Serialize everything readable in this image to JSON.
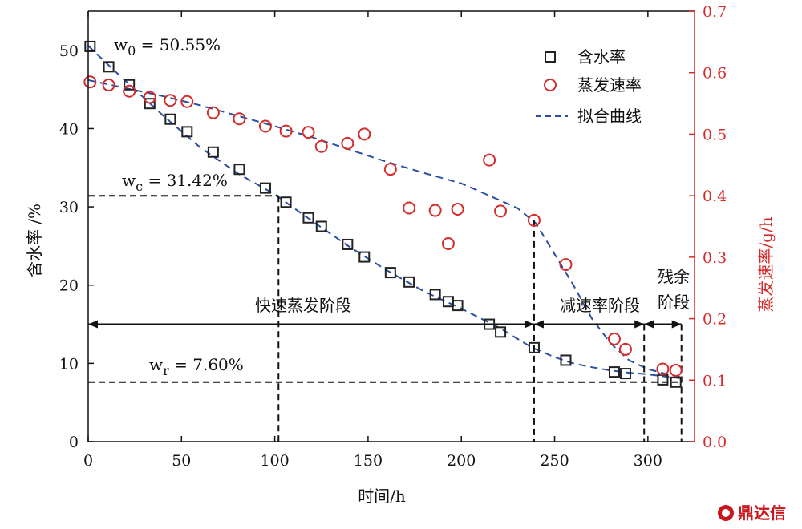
{
  "chart_data": {
    "type": "scatter",
    "xlabel": "时间/h",
    "ylabel_left": "含水率 /%",
    "ylabel_right": "蒸发速率/g/h",
    "xlim": [
      0,
      325
    ],
    "ylim_left": [
      0,
      55
    ],
    "ylim_right": [
      0,
      0.7
    ],
    "xticks": [
      0,
      50,
      100,
      150,
      200,
      250,
      300
    ],
    "yticks_left": [
      0,
      10,
      20,
      30,
      40,
      50
    ],
    "yticks_right": [
      "0.0",
      "0.1",
      "0.2",
      "0.3",
      "0.4",
      "0.5",
      "0.6",
      "0.7"
    ],
    "legend": {
      "position": "top-right",
      "items": [
        "含水率",
        "蒸发速率",
        "拟合曲线"
      ]
    },
    "series": [
      {
        "name": "含水率",
        "axis": "left",
        "marker": "square",
        "color": "#222222",
        "x": [
          1,
          11,
          22,
          33,
          44,
          53,
          67,
          81,
          95,
          106,
          118,
          125,
          139,
          148,
          162,
          172,
          186,
          193,
          198,
          215,
          221,
          239,
          256,
          282,
          288,
          308,
          315
        ],
        "y": [
          50.5,
          47.9,
          45.6,
          43.2,
          41.2,
          39.6,
          37.0,
          34.8,
          32.4,
          30.6,
          28.6,
          27.5,
          25.2,
          23.6,
          21.6,
          20.4,
          18.8,
          17.9,
          17.4,
          15.0,
          14.0,
          12.0,
          10.4,
          8.9,
          8.7,
          7.9,
          7.6
        ]
      },
      {
        "name": "蒸发速率",
        "axis": "right",
        "marker": "circle",
        "color": "#d62b2b",
        "x": [
          1,
          11,
          22,
          33,
          44,
          53,
          67,
          81,
          95,
          106,
          118,
          125,
          139,
          148,
          162,
          172,
          186,
          193,
          198,
          215,
          221,
          239,
          256,
          282,
          288,
          308,
          315
        ],
        "y": [
          0.585,
          0.58,
          0.57,
          0.56,
          0.555,
          0.553,
          0.535,
          0.525,
          0.513,
          0.505,
          0.503,
          0.48,
          0.485,
          0.5,
          0.443,
          0.38,
          0.376,
          0.322,
          0.378,
          0.458,
          0.375,
          0.36,
          0.288,
          0.167,
          0.15,
          0.118,
          0.116
        ]
      }
    ],
    "fit_curves": [
      {
        "name": "拟合曲线",
        "axis": "left",
        "x": [
          0,
          10,
          20,
          30,
          40,
          60,
          80,
          100,
          120,
          140,
          160,
          180,
          200,
          220,
          238,
          250,
          260,
          270,
          280,
          290,
          300,
          310,
          318
        ],
        "y": [
          50.6,
          48.3,
          46.1,
          43.9,
          41.7,
          37.6,
          34.3,
          31.6,
          28.2,
          24.9,
          21.9,
          19.2,
          17.0,
          14.6,
          12.0,
          10.8,
          10.0,
          9.5,
          9.1,
          8.8,
          8.6,
          8.3,
          8.1
        ]
      },
      {
        "name": "拟合曲线",
        "axis": "right",
        "x": [
          0,
          20,
          40,
          60,
          80,
          100,
          120,
          140,
          160,
          180,
          200,
          215,
          230,
          240,
          250,
          260,
          270,
          280,
          290,
          300,
          310,
          318
        ],
        "y": [
          0.588,
          0.575,
          0.562,
          0.547,
          0.53,
          0.513,
          0.495,
          0.475,
          0.455,
          0.437,
          0.42,
          0.4,
          0.38,
          0.355,
          0.305,
          0.255,
          0.2,
          0.16,
          0.132,
          0.118,
          0.11,
          0.105
        ]
      }
    ],
    "annotations": {
      "w0": {
        "text": "w0 = 50.55%",
        "main": "w",
        "sub": "0",
        "rest": " = 50.55%",
        "x": 0,
        "y": 50.55
      },
      "wc": {
        "text": "wc = 31.42%",
        "main": "w",
        "sub": "c",
        "rest": " = 31.42%",
        "x": 102,
        "y": 31.42
      },
      "wr": {
        "text": "wr = 7.60%",
        "main": "w",
        "sub": "r",
        "rest": " = 7.60%",
        "x": 318,
        "y": 7.6
      }
    },
    "stage_boundaries": [
      102,
      239,
      298,
      318
    ],
    "stages": [
      {
        "label": "快速蒸发阶段",
        "from": 0,
        "to": 239
      },
      {
        "label": "减速率阶段",
        "from": 239,
        "to": 298
      },
      {
        "label": "残余阶段",
        "from": 298,
        "to": 318
      }
    ],
    "stage_line_y": 15
  },
  "watermark": {
    "text": "鼎达信",
    "icon": "brand-logo-icon",
    "color": "#c8161d"
  }
}
